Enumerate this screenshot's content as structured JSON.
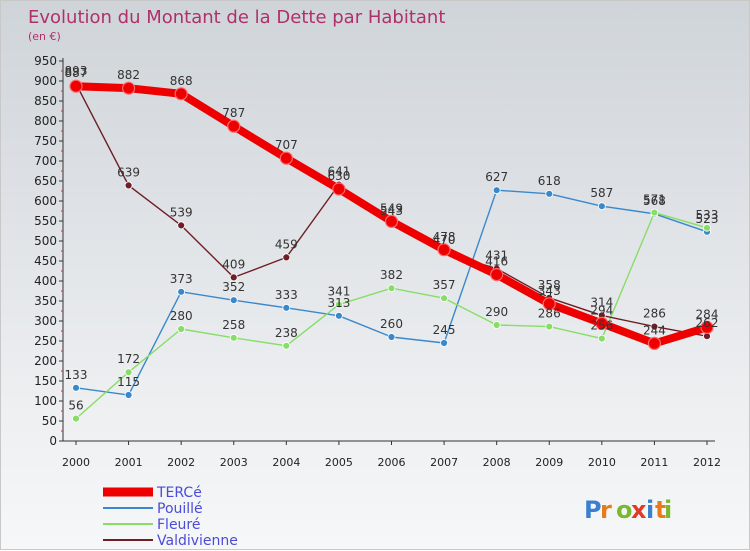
{
  "chart_data": {
    "type": "line",
    "title": "Evolution du Montant de la Dette par Habitant",
    "subtitle": "(en €)",
    "x": [
      "2000",
      "2001",
      "2002",
      "2003",
      "2004",
      "2005",
      "2006",
      "2007",
      "2008",
      "2009",
      "2010",
      "2011",
      "2012"
    ],
    "ylim": [
      0,
      950
    ],
    "yticks": [
      0,
      50,
      100,
      150,
      200,
      250,
      300,
      350,
      400,
      450,
      500,
      550,
      600,
      650,
      700,
      750,
      800,
      850,
      900,
      950
    ],
    "grid": false,
    "legend_position": "bottom-left",
    "series": [
      {
        "name": "TERCé",
        "color": "#ee0000",
        "values": [
          887,
          882,
          868,
          787,
          707,
          630,
          549,
          478,
          416,
          343,
          294,
          244,
          284
        ]
      },
      {
        "name": "Pouillé",
        "color": "#3a88cc",
        "values": [
          133,
          115,
          373,
          352,
          333,
          313,
          260,
          245,
          627,
          618,
          587,
          568,
          523
        ]
      },
      {
        "name": "Fleuré",
        "color": "#88dd66",
        "values": [
          56,
          172,
          280,
          258,
          238,
          341,
          382,
          357,
          290,
          286,
          256,
          571,
          533
        ]
      },
      {
        "name": "Valdivienne",
        "color": "#6e1e26",
        "values": [
          893,
          639,
          539,
          409,
          459,
          641,
          543,
          470,
          431,
          358,
          314,
          286,
          262
        ]
      }
    ]
  },
  "watermark": "Proxiti"
}
